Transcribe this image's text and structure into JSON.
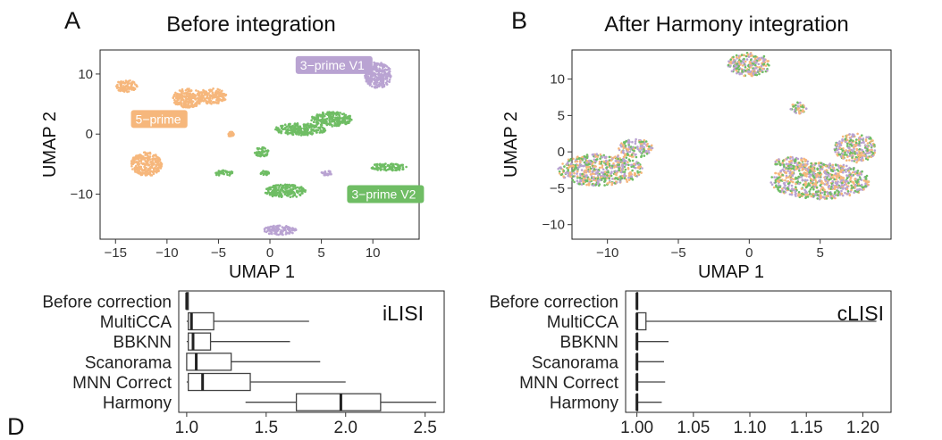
{
  "colors": {
    "five_prime": "#f6b77c",
    "three_prime_v1": "#b9a3d2",
    "three_prime_v2": "#6fbd64",
    "box_stroke": "#444444",
    "frame": "#222222"
  },
  "chart_data": [
    {
      "type": "scatter",
      "panel_label": "A",
      "title": "Before integration",
      "xlabel": "UMAP 1",
      "ylabel": "UMAP 2",
      "xlim": [
        -16.5,
        14.5
      ],
      "ylim": [
        -17.5,
        14
      ],
      "xticks": [
        "−15",
        "−10",
        "−5",
        "0",
        "5",
        "10"
      ],
      "xtick_values": [
        -15,
        -10,
        -5,
        0,
        5,
        10
      ],
      "yticks": [
        "10",
        "0",
        "−10"
      ],
      "ytick_values": [
        10,
        0,
        -10
      ],
      "grid": false,
      "series_labels": [
        {
          "text": "5−prime",
          "x": -13.5,
          "y": 2.5,
          "color_key": "five_prime"
        },
        {
          "text": "3−prime V1",
          "x": 2.5,
          "y": 11.5,
          "color_key": "three_prime_v1"
        },
        {
          "text": "3−prime V2",
          "x": 7.5,
          "y": -10,
          "color_key": "three_prime_v2"
        }
      ],
      "clusters": [
        {
          "color_key": "five_prime",
          "x": -14,
          "y": 8,
          "rx": 1.1,
          "ry": 1.0
        },
        {
          "color_key": "five_prime",
          "x": -8,
          "y": 6,
          "rx": 1.5,
          "ry": 1.6
        },
        {
          "color_key": "five_prime",
          "x": -5.6,
          "y": 6.3,
          "rx": 1.4,
          "ry": 1.3
        },
        {
          "color_key": "five_prime",
          "x": -12,
          "y": -5,
          "rx": 1.5,
          "ry": 2.0
        },
        {
          "color_key": "five_prime",
          "x": -3.8,
          "y": 0,
          "rx": 0.3,
          "ry": 0.4
        },
        {
          "color_key": "three_prime_v1",
          "x": 7.8,
          "y": 11.5,
          "rx": 1.0,
          "ry": 1.2
        },
        {
          "color_key": "three_prime_v1",
          "x": 10.5,
          "y": 9.8,
          "rx": 1.3,
          "ry": 2.2
        },
        {
          "color_key": "three_prime_v1",
          "x": 5.5,
          "y": -6.5,
          "rx": 0.5,
          "ry": 0.4
        },
        {
          "color_key": "three_prime_v1",
          "x": 1.0,
          "y": -16.0,
          "rx": 1.6,
          "ry": 0.8
        },
        {
          "color_key": "three_prime_v2",
          "x": 3.0,
          "y": 0.8,
          "rx": 2.5,
          "ry": 1.0
        },
        {
          "color_key": "three_prime_v2",
          "x": 6.0,
          "y": 2.5,
          "rx": 2.0,
          "ry": 1.2
        },
        {
          "color_key": "three_prime_v2",
          "x": 11.5,
          "y": -5.5,
          "rx": 1.8,
          "ry": 0.6
        },
        {
          "color_key": "three_prime_v2",
          "x": 1.5,
          "y": -9.5,
          "rx": 2.0,
          "ry": 1.1
        },
        {
          "color_key": "three_prime_v2",
          "x": -4.5,
          "y": -6.5,
          "rx": 0.9,
          "ry": 0.5
        },
        {
          "color_key": "three_prime_v2",
          "x": -0.8,
          "y": -3.0,
          "rx": 0.7,
          "ry": 0.8
        },
        {
          "color_key": "three_prime_v2",
          "x": -0.5,
          "y": -6.5,
          "rx": 0.4,
          "ry": 0.4
        }
      ]
    },
    {
      "type": "scatter",
      "panel_label": "B",
      "title": "After Harmony integration",
      "xlabel": "UMAP 1",
      "ylabel": "UMAP 2",
      "xlim": [
        -12.5,
        10
      ],
      "ylim": [
        -12,
        14
      ],
      "xticks": [
        "−10",
        "−5",
        "0",
        "5"
      ],
      "xtick_values": [
        -10,
        -5,
        0,
        5
      ],
      "yticks": [
        "10",
        "5",
        "0",
        "−5",
        "−10"
      ],
      "ytick_values": [
        10,
        5,
        0,
        -5,
        -10
      ],
      "grid": false,
      "clusters": [
        {
          "x": 0,
          "y": 12,
          "rx": 1.5,
          "ry": 1.6
        },
        {
          "x": 3.5,
          "y": 6,
          "rx": 0.6,
          "ry": 0.8
        },
        {
          "x": -10.5,
          "y": -2.5,
          "rx": 3.0,
          "ry": 2.2
        },
        {
          "x": -8.0,
          "y": 0.5,
          "rx": 1.2,
          "ry": 1.3
        },
        {
          "x": 5.0,
          "y": -4.0,
          "rx": 3.5,
          "ry": 2.5
        },
        {
          "x": 7.5,
          "y": 0.5,
          "rx": 1.5,
          "ry": 2.0
        },
        {
          "x": 3.0,
          "y": -1.5,
          "rx": 1.2,
          "ry": 0.8
        }
      ]
    },
    {
      "type": "box",
      "panel_label": "D",
      "annotation": "iLISI",
      "categories": [
        "Before correction",
        "MultiCCA",
        "BBKNN",
        "Scanorama",
        "MNN Correct",
        "Harmony"
      ],
      "xlim": [
        0.95,
        2.62
      ],
      "xticks": [
        "1.0",
        "1.5",
        "2.0",
        "2.5"
      ],
      "xtick_values": [
        1.0,
        1.5,
        2.0,
        2.5
      ],
      "boxes": [
        {
          "min": 1.0,
          "q1": 1.0,
          "median": 1.0,
          "q3": 1.01,
          "max": 1.01
        },
        {
          "min": 1.0,
          "q1": 1.01,
          "median": 1.03,
          "q3": 1.17,
          "max": 1.77
        },
        {
          "min": 1.0,
          "q1": 1.01,
          "median": 1.04,
          "q3": 1.15,
          "max": 1.65
        },
        {
          "min": 1.0,
          "q1": 1.0,
          "median": 1.06,
          "q3": 1.28,
          "max": 1.84
        },
        {
          "min": 1.0,
          "q1": 1.01,
          "median": 1.1,
          "q3": 1.4,
          "max": 2.0
        },
        {
          "min": 1.37,
          "q1": 1.69,
          "median": 1.97,
          "q3": 2.22,
          "max": 2.57
        }
      ]
    },
    {
      "type": "box",
      "panel_label": "",
      "annotation": "cLISI",
      "categories": [
        "Before correction",
        "MultiCCA",
        "BBKNN",
        "Scanorama",
        "MNN Correct",
        "Harmony"
      ],
      "xlim": [
        0.99,
        1.225
      ],
      "xticks": [
        "1.00",
        "1.05",
        "1.10",
        "1.15",
        "1.20"
      ],
      "xtick_values": [
        1.0,
        1.05,
        1.1,
        1.15,
        1.2
      ],
      "boxes": [
        {
          "min": 1.0,
          "q1": 1.0,
          "median": 1.0,
          "q3": 1.0,
          "max": 1.0
        },
        {
          "min": 1.0,
          "q1": 1.0,
          "median": 1.0,
          "q3": 1.008,
          "max": 1.212
        },
        {
          "min": 1.0,
          "q1": 1.0,
          "median": 1.0,
          "q3": 1.0,
          "max": 1.028
        },
        {
          "min": 1.0,
          "q1": 1.0,
          "median": 1.0,
          "q3": 1.0,
          "max": 1.024
        },
        {
          "min": 1.0,
          "q1": 1.0,
          "median": 1.0,
          "q3": 1.0,
          "max": 1.025
        },
        {
          "min": 1.0,
          "q1": 1.0,
          "median": 1.0,
          "q3": 1.0,
          "max": 1.022
        }
      ]
    }
  ]
}
